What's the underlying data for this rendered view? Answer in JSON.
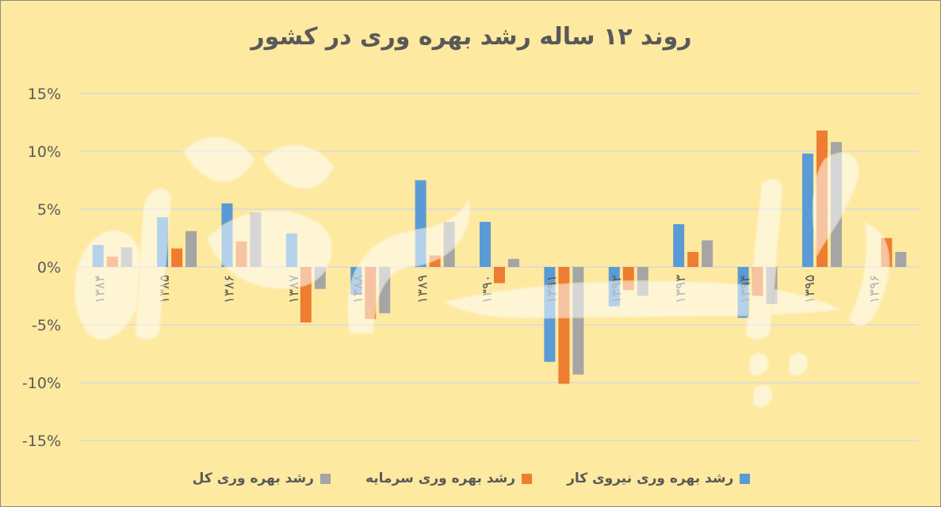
{
  "chart_data": {
    "type": "bar",
    "title": "روند ۱۲ ساله رشد بهره وری  در کشور",
    "categories": [
      "۱۳۸۴",
      "۱۳۸۵",
      "۱۳۸۶",
      "۱۳۸۷",
      "۱۳۸۸",
      "۱۳۸۹",
      "۱۳۹۰",
      "۱۳۹۱",
      "۱۳۹۲",
      "۱۳۹۳",
      "۱۳۹۴",
      "۱۳۹۵",
      "۱۳۹۶"
    ],
    "series": [
      {
        "name": "رشد بهره وری نیروی کار",
        "color": "#5b9bd5",
        "values": [
          1.9,
          4.3,
          5.5,
          2.9,
          -2.4,
          7.5,
          3.9,
          -8.2,
          -3.4,
          3.7,
          -4.4,
          9.8,
          0.0
        ]
      },
      {
        "name": "رشد بهره وری سرمایه",
        "color": "#ed7d31",
        "values": [
          0.9,
          1.6,
          2.2,
          -4.8,
          -4.5,
          1.0,
          -1.4,
          -10.1,
          -2.0,
          1.3,
          -2.5,
          11.8,
          2.5
        ]
      },
      {
        "name": "رشد بهره وری کل",
        "color": "#a5a5a5",
        "values": [
          1.7,
          3.1,
          4.7,
          -1.9,
          -4.0,
          3.9,
          0.7,
          -9.3,
          -2.5,
          2.3,
          -3.2,
          10.8,
          1.3
        ]
      }
    ],
    "yticks": [
      15,
      10,
      5,
      0,
      -5,
      -10,
      -15
    ],
    "ytick_labels": [
      "15%",
      "10%",
      "5%",
      "0%",
      "-5%",
      "-10%",
      "-15%"
    ],
    "ylim": [
      -15,
      15
    ],
    "grid": true,
    "legend_position": "bottom",
    "watermark": "دنیای اقتصاد"
  }
}
